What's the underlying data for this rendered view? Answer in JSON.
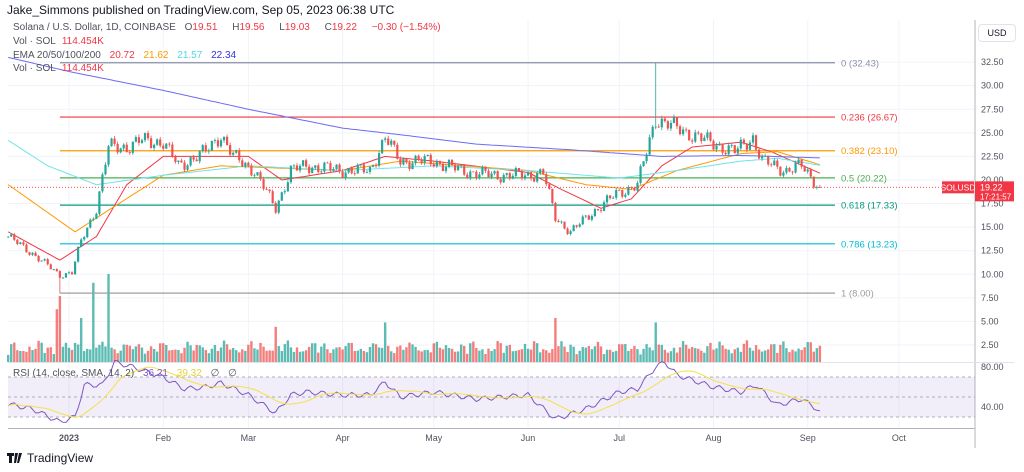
{
  "publisher": "Jake_Simmons published on TradingView.com, Sep 05, 2023 06:38 UTC",
  "legend": {
    "symbol": "Solana / U.S. Dollar, 1D, COINBASE",
    "open_label": "O",
    "open": "19.51",
    "high_label": "H",
    "high": "19.56",
    "low_label": "L",
    "low": "19.03",
    "close_label": "C",
    "close": "19.22",
    "change": "−0.30 (−1.54%)",
    "vol_label": "Vol · SOL",
    "vol": "114.454K",
    "ema_label": "EMA 20/50/100/200",
    "ema20": "20.72",
    "ema50": "21.62",
    "ema100": "21.57",
    "ema200": "22.34",
    "vol2_label": "Vol · SOL",
    "vol2": "114.454K",
    "rsi_label": "RSI (14, close, SMA, 14, 2)",
    "rsi": "36.21",
    "rsi_sma": "39.32"
  },
  "currency": "USD",
  "price_tag": {
    "symbol": "SOLUSD",
    "price": "19.22",
    "countdown": "17:21:57"
  },
  "brand": "TradingView",
  "colors": {
    "up": "#26a69a",
    "down": "#ef5350",
    "ema20": "#f23645",
    "ema50": "#ff9800",
    "ema100": "#6fe3ec",
    "ema200": "#6b6bf2",
    "rsi": "#7e57c2",
    "rsi_sma": "#f5e04a",
    "tag": "#f23645"
  },
  "chart_data": {
    "type": "candlestick",
    "interval": "1D",
    "x_range": [
      "2022-12-12",
      "2023-10-31"
    ],
    "y_range": [
      0,
      34
    ],
    "price_ticks": [
      "32.50",
      "30.00",
      "27.50",
      "25.00",
      "22.50",
      "20.00",
      "17.50",
      "15.00",
      "12.50",
      "10.00",
      "7.50",
      "5.00",
      "2.50"
    ],
    "time_ticks": [
      {
        "label": "2023",
        "date": "2023-01-01"
      },
      {
        "label": "Feb",
        "date": "2023-02-01"
      },
      {
        "label": "Mar",
        "date": "2023-03-01"
      },
      {
        "label": "Apr",
        "date": "2023-04-01"
      },
      {
        "label": "May",
        "date": "2023-05-01"
      },
      {
        "label": "Jun",
        "date": "2023-06-01"
      },
      {
        "label": "Jul",
        "date": "2023-07-01"
      },
      {
        "label": "Aug",
        "date": "2023-08-01"
      },
      {
        "label": "Sep",
        "date": "2023-09-01"
      },
      {
        "label": "Oct",
        "date": "2023-10-01"
      }
    ],
    "close_keyframes": [
      [
        "2022-12-12",
        14.0
      ],
      [
        "2022-12-20",
        12.2
      ],
      [
        "2022-12-29",
        9.9
      ],
      [
        "2023-01-02",
        10.2
      ],
      [
        "2023-01-05",
        13.5
      ],
      [
        "2023-01-10",
        17.0
      ],
      [
        "2023-01-14",
        23.5
      ],
      [
        "2023-01-20",
        23.5
      ],
      [
        "2023-01-25",
        24.2
      ],
      [
        "2023-02-01",
        24.0
      ],
      [
        "2023-02-06",
        21.5
      ],
      [
        "2023-02-15",
        23.0
      ],
      [
        "2023-02-20",
        24.8
      ],
      [
        "2023-02-24",
        22.5
      ],
      [
        "2023-03-03",
        21.0
      ],
      [
        "2023-03-10",
        17.0
      ],
      [
        "2023-03-15",
        21.0
      ],
      [
        "2023-03-20",
        21.5
      ],
      [
        "2023-04-01",
        21.0
      ],
      [
        "2023-04-10",
        21.0
      ],
      [
        "2023-04-15",
        24.5
      ],
      [
        "2023-04-20",
        22.0
      ],
      [
        "2023-05-01",
        22.0
      ],
      [
        "2023-05-10",
        21.0
      ],
      [
        "2023-05-20",
        20.5
      ],
      [
        "2023-06-01",
        20.5
      ],
      [
        "2023-06-06",
        20.8
      ],
      [
        "2023-06-10",
        16.0
      ],
      [
        "2023-06-15",
        14.5
      ],
      [
        "2023-06-22",
        16.5
      ],
      [
        "2023-06-30",
        18.5
      ],
      [
        "2023-07-07",
        19.5
      ],
      [
        "2023-07-13",
        26.5
      ],
      [
        "2023-07-20",
        25.5
      ],
      [
        "2023-07-31",
        24.0
      ],
      [
        "2023-08-08",
        23.0
      ],
      [
        "2023-08-14",
        24.5
      ],
      [
        "2023-08-17",
        22.0
      ],
      [
        "2023-08-25",
        21.0
      ],
      [
        "2023-08-30",
        21.5
      ],
      [
        "2023-09-05",
        19.22
      ]
    ],
    "extreme_wicks": [
      {
        "date": "2023-07-13",
        "high": 32.43
      },
      {
        "date": "2022-12-29",
        "low": 8.0
      }
    ],
    "ema": [
      {
        "name": "EMA 20",
        "color_key": "ema20",
        "keyframes": [
          [
            "2022-12-12",
            14.5
          ],
          [
            "2022-12-29",
            11.5
          ],
          [
            "2023-01-10",
            14
          ],
          [
            "2023-01-20",
            19.5
          ],
          [
            "2023-02-01",
            22.5
          ],
          [
            "2023-02-15",
            22.5
          ],
          [
            "2023-03-01",
            22.5
          ],
          [
            "2023-03-12",
            20
          ],
          [
            "2023-04-01",
            21
          ],
          [
            "2023-04-15",
            22.5
          ],
          [
            "2023-05-01",
            22
          ],
          [
            "2023-06-01",
            20.8
          ],
          [
            "2023-06-12",
            19
          ],
          [
            "2023-06-25",
            17
          ],
          [
            "2023-07-05",
            18
          ],
          [
            "2023-07-15",
            21.5
          ],
          [
            "2023-07-25",
            23.5
          ],
          [
            "2023-08-10",
            24
          ],
          [
            "2023-08-20",
            23
          ],
          [
            "2023-09-05",
            20.72
          ]
        ]
      },
      {
        "name": "EMA 50",
        "color_key": "ema50",
        "keyframes": [
          [
            "2022-12-12",
            19.5
          ],
          [
            "2023-01-03",
            14.5
          ],
          [
            "2023-01-15",
            17
          ],
          [
            "2023-02-01",
            20.5
          ],
          [
            "2023-02-20",
            21.5
          ],
          [
            "2023-04-01",
            21
          ],
          [
            "2023-04-20",
            22
          ],
          [
            "2023-06-01",
            21
          ],
          [
            "2023-06-20",
            19.5
          ],
          [
            "2023-07-05",
            19
          ],
          [
            "2023-07-20",
            21
          ],
          [
            "2023-08-10",
            22.8
          ],
          [
            "2023-08-22",
            23
          ],
          [
            "2023-09-05",
            21.62
          ]
        ]
      },
      {
        "name": "EMA 100",
        "color_key": "ema100",
        "keyframes": [
          [
            "2022-12-12",
            24.2
          ],
          [
            "2022-12-25",
            21.5
          ],
          [
            "2023-01-10",
            19.5
          ],
          [
            "2023-02-01",
            20.5
          ],
          [
            "2023-03-01",
            21.5
          ],
          [
            "2023-04-01",
            21
          ],
          [
            "2023-05-01",
            21.5
          ],
          [
            "2023-06-01",
            21
          ],
          [
            "2023-07-01",
            20.2
          ],
          [
            "2023-07-20",
            21
          ],
          [
            "2023-08-10",
            22
          ],
          [
            "2023-08-22",
            22.3
          ],
          [
            "2023-09-05",
            21.57
          ]
        ]
      },
      {
        "name": "EMA 200",
        "color_key": "ema200",
        "keyframes": [
          [
            "2022-12-12",
            33
          ],
          [
            "2023-01-01",
            31.5
          ],
          [
            "2023-02-01",
            29.5
          ],
          [
            "2023-03-01",
            27.5
          ],
          [
            "2023-04-01",
            25.5
          ],
          [
            "2023-04-20",
            24.8
          ],
          [
            "2023-05-15",
            23.8
          ],
          [
            "2023-06-15",
            23.2
          ],
          [
            "2023-07-15",
            22.5
          ],
          [
            "2023-08-10",
            22.6
          ],
          [
            "2023-09-05",
            22.34
          ]
        ]
      }
    ],
    "fibonacci": [
      {
        "label": "0 (32.43)",
        "price": 32.43,
        "color": "#8a8fa8"
      },
      {
        "label": "0.236 (26.67)",
        "price": 26.67,
        "color": "#f23645"
      },
      {
        "label": "0.382 (23.10)",
        "price": 23.1,
        "color": "#ff9800"
      },
      {
        "label": "0.5 (20.22)",
        "price": 20.22,
        "color": "#4caf50"
      },
      {
        "label": "0.618 (17.33)",
        "price": 17.33,
        "color": "#089981"
      },
      {
        "label": "0.786 (13.23)",
        "price": 13.23,
        "color": "#00bcd4"
      },
      {
        "label": "1 (8.00)",
        "price": 8.0,
        "color": "#9e9e9e"
      }
    ],
    "volume_spikes": [
      [
        "2022-12-28",
        0.6
      ],
      [
        "2022-12-29",
        0.75
      ],
      [
        "2023-01-09",
        0.9
      ],
      [
        "2023-01-14",
        1.0
      ],
      [
        "2023-01-05",
        0.5
      ],
      [
        "2023-03-10",
        0.4
      ],
      [
        "2023-04-15",
        0.45
      ],
      [
        "2023-06-10",
        0.5
      ],
      [
        "2023-07-13",
        0.45
      ]
    ],
    "rsi": {
      "ticks": [
        "80.00",
        "40.00"
      ],
      "levels": [
        70,
        50,
        30
      ],
      "keyframes": [
        [
          "2022-12-12",
          43
        ],
        [
          "2022-12-20",
          38
        ],
        [
          "2022-12-29",
          25
        ],
        [
          "2023-01-03",
          30
        ],
        [
          "2023-01-06",
          62
        ],
        [
          "2023-01-12",
          62
        ],
        [
          "2023-01-16",
          85
        ],
        [
          "2023-01-22",
          80
        ],
        [
          "2023-02-01",
          70
        ],
        [
          "2023-02-08",
          58
        ],
        [
          "2023-02-15",
          60
        ],
        [
          "2023-02-20",
          64
        ],
        [
          "2023-03-01",
          52
        ],
        [
          "2023-03-10",
          34
        ],
        [
          "2023-03-15",
          52
        ],
        [
          "2023-03-20",
          55
        ],
        [
          "2023-04-01",
          52
        ],
        [
          "2023-04-10",
          52
        ],
        [
          "2023-04-15",
          65
        ],
        [
          "2023-04-20",
          50
        ],
        [
          "2023-05-01",
          55
        ],
        [
          "2023-05-15",
          48
        ],
        [
          "2023-06-01",
          52
        ],
        [
          "2023-06-10",
          28
        ],
        [
          "2023-06-20",
          38
        ],
        [
          "2023-07-01",
          55
        ],
        [
          "2023-07-07",
          58
        ],
        [
          "2023-07-13",
          80
        ],
        [
          "2023-07-16",
          85
        ],
        [
          "2023-07-20",
          72
        ],
        [
          "2023-08-01",
          60
        ],
        [
          "2023-08-10",
          55
        ],
        [
          "2023-08-15",
          62
        ],
        [
          "2023-08-22",
          42
        ],
        [
          "2023-08-30",
          48
        ],
        [
          "2023-09-05",
          36.21
        ]
      ]
    }
  }
}
